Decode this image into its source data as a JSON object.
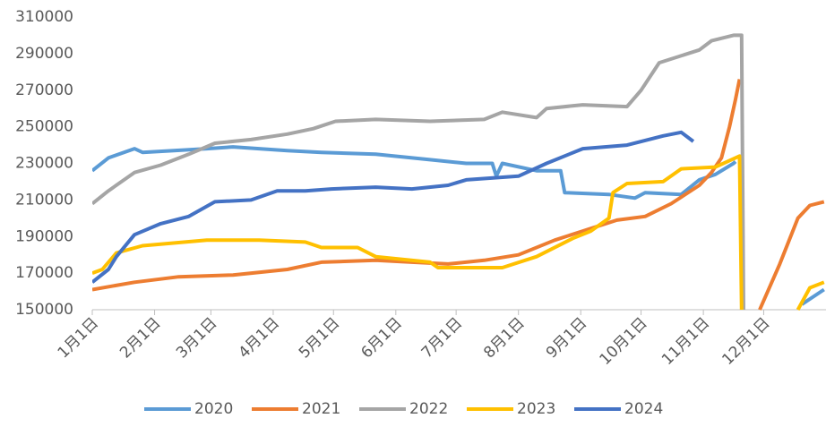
{
  "chart_data": {
    "type": "line",
    "xlim": [
      0,
      365
    ],
    "xticks": [
      {
        "value": 0,
        "label": "1月1日"
      },
      {
        "value": 31,
        "label": "2月1日"
      },
      {
        "value": 59,
        "label": "3月1日"
      },
      {
        "value": 90,
        "label": "4月1日"
      },
      {
        "value": 120,
        "label": "5月1日"
      },
      {
        "value": 151,
        "label": "6月1日"
      },
      {
        "value": 181,
        "label": "7月1日"
      },
      {
        "value": 212,
        "label": "8月1日"
      },
      {
        "value": 243,
        "label": "9月1日"
      },
      {
        "value": 273,
        "label": "10月1日"
      },
      {
        "value": 304,
        "label": "11月1日"
      },
      {
        "value": 334,
        "label": "12月1日"
      }
    ],
    "ylim": [
      150000,
      310000
    ],
    "yticks": [
      150000,
      170000,
      190000,
      210000,
      230000,
      250000,
      270000,
      290000,
      310000
    ],
    "grid": false,
    "legend": "bottom",
    "series": [
      {
        "name": "2020",
        "color": "#5B9BD5",
        "x": [
          0,
          8,
          21,
          25,
          57,
          70,
          83,
          97,
          114,
          141,
          168,
          186,
          199,
          201,
          204,
          221,
          233,
          235,
          257,
          270,
          275,
          293,
          302,
          310,
          319,
          320,
          322,
          353,
          364
        ],
        "values": [
          226000,
          233000,
          238000,
          236000,
          238000,
          239000,
          238000,
          237000,
          236000,
          235000,
          232000,
          230000,
          230000,
          223000,
          230000,
          226000,
          226000,
          214000,
          213000,
          211000,
          214000,
          213000,
          221000,
          224000,
          230000,
          231000,
          null,
          153000,
          161000
        ]
      },
      {
        "name": "2021",
        "color": "#ED7D31",
        "x": [
          0,
          21,
          43,
          70,
          97,
          114,
          141,
          159,
          177,
          195,
          212,
          230,
          244,
          261,
          275,
          288,
          302,
          308,
          313,
          317,
          320,
          322,
          323,
          332,
          342,
          351,
          357,
          364
        ],
        "values": [
          161000,
          165000,
          168000,
          169000,
          172000,
          176000,
          177000,
          176000,
          175000,
          177000,
          180000,
          188000,
          193000,
          199000,
          201000,
          208000,
          218000,
          225000,
          233000,
          250000,
          265000,
          276000,
          null,
          150000,
          175000,
          200000,
          207000,
          209000
        ]
      },
      {
        "name": "2022",
        "color": "#A5A5A5",
        "x": [
          0,
          8,
          21,
          34,
          48,
          61,
          79,
          97,
          110,
          121,
          141,
          168,
          195,
          204,
          221,
          226,
          244,
          266,
          273,
          282,
          302,
          308,
          319,
          323,
          324
        ],
        "values": [
          208000,
          215000,
          225000,
          229000,
          235000,
          241000,
          243000,
          246000,
          249000,
          253000,
          254000,
          253000,
          254000,
          258000,
          255000,
          260000,
          262000,
          261000,
          270000,
          285000,
          292000,
          297000,
          300000,
          300000,
          150000
        ]
      },
      {
        "name": "2023",
        "color": "#FFC000",
        "x": [
          0,
          5,
          12,
          25,
          57,
          83,
          106,
          114,
          132,
          141,
          168,
          172,
          204,
          221,
          239,
          248,
          257,
          259,
          266,
          284,
          293,
          310,
          322,
          323,
          340,
          351,
          357,
          364
        ],
        "values": [
          170000,
          172000,
          181000,
          185000,
          188000,
          188000,
          187000,
          184000,
          184000,
          179000,
          176000,
          173000,
          173000,
          179000,
          189000,
          193000,
          200000,
          214000,
          219000,
          220000,
          227000,
          228000,
          234000,
          150000,
          null,
          150000,
          162000,
          165000
        ]
      },
      {
        "name": "2024",
        "color": "#4472C4",
        "x": [
          0,
          8,
          12,
          21,
          34,
          48,
          61,
          79,
          92,
          106,
          119,
          141,
          159,
          177,
          186,
          212,
          226,
          244,
          266,
          284,
          293,
          299
        ],
        "values": [
          165000,
          172000,
          179000,
          191000,
          197000,
          201000,
          209000,
          210000,
          215000,
          215000,
          216000,
          217000,
          216000,
          218000,
          221000,
          223000,
          230000,
          238000,
          240000,
          245000,
          247000,
          242000
        ]
      }
    ]
  }
}
